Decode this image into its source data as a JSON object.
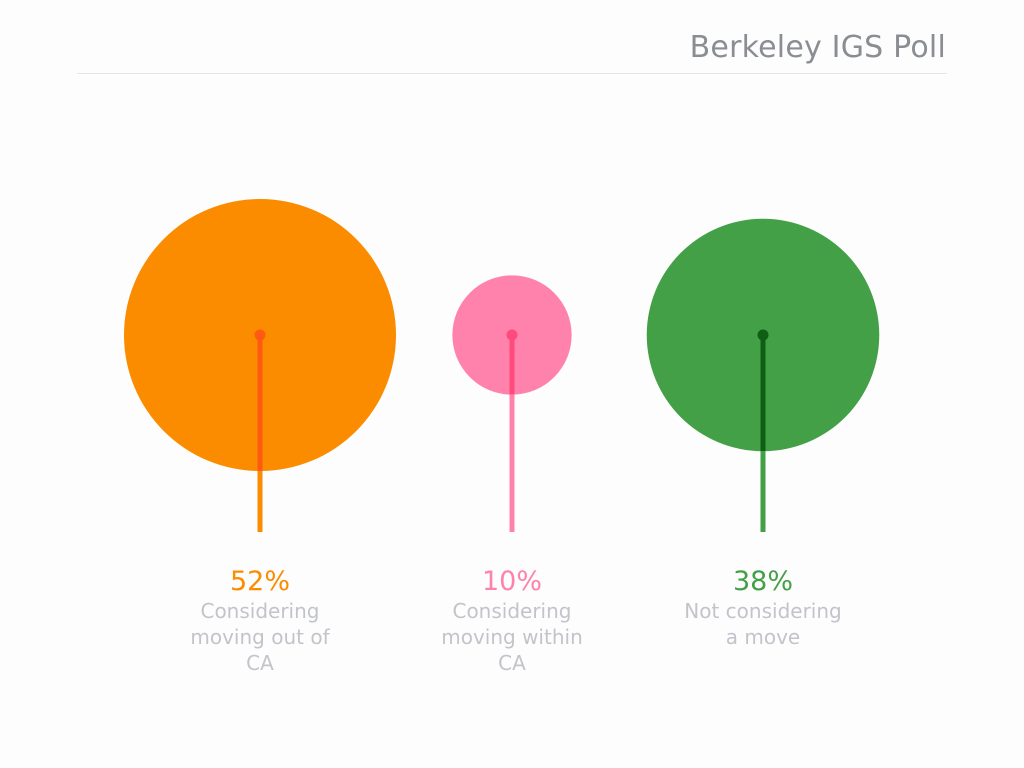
{
  "header": {
    "title": "Berkeley IGS Poll"
  },
  "chart_data": {
    "type": "bubble-lollipop",
    "categories": [
      "Considering moving out of CA",
      "Considering moving within CA",
      "Not considering a move"
    ],
    "values": [
      52,
      10,
      38
    ],
    "unit": "%",
    "items": [
      {
        "value": 52,
        "value_label": "52%",
        "label_lines": [
          "Considering",
          "moving out of",
          "CA"
        ],
        "color": "#FB8C00",
        "stem_top_color": "#FF5A14",
        "stem_bottom_color": "#FB8C00"
      },
      {
        "value": 10,
        "value_label": "10%",
        "label_lines": [
          "Considering",
          "moving within",
          "CA"
        ],
        "color": "#FF82AD",
        "stem_top_color": "#FF4B7C",
        "stem_bottom_color": "#FF82AD"
      },
      {
        "value": 38,
        "value_label": "38%",
        "label_lines": [
          "Not considering",
          "a move"
        ],
        "color": "#43A047",
        "stem_top_color": "#0E5E14",
        "stem_bottom_color": "#43A047"
      }
    ]
  }
}
